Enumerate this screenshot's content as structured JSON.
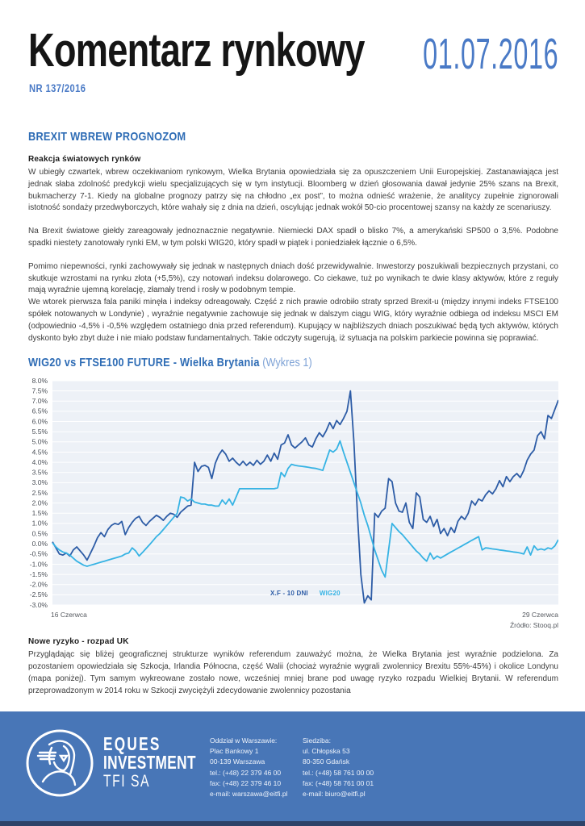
{
  "header": {
    "title": "Komentarz rynkowy",
    "issue": "NR 137/2016",
    "date": "01.07.2016"
  },
  "article": {
    "section_heading": "BREXIT WBREW PROGNOZOM",
    "sub1_heading": "Reakcja światowych rynków",
    "p1": "W ubiegły czwartek, wbrew oczekiwaniom rynkowym, Wielka Brytania opowiedziała się za opuszczeniem Unii Europejskiej. Zastanawiająca jest jednak słaba zdolność predykcji wielu specjalizujących się w tym instytucji. Bloomberg w dzień głosowania dawał jedynie 25% szans na Brexit, bukmacherzy 7-1. Kiedy na globalne prognozy patrzy się na chłodno „ex post”, to można odnieść wrażenie, że analitycy zupełnie zignorowali istotność sondaży przedwyborczych, które wahały się z dnia na dzień, oscylując jednak wokół 50-cio procentowej szansy na każdy ze scenariuszy.",
    "p2": "Na Brexit światowe giełdy zareagowały jednoznacznie negatywnie. Niemiecki DAX spadł o blisko 7%, a amerykański SP500 o 3,5%. Podobne spadki niestety zanotowały rynki EM, w tym polski WIG20, który spadł w piątek i poniedziałek łącznie o 6,5%.",
    "p3": "Pomimo niepewności, rynki zachowywały się jednak w następnych dniach dość przewidywalnie. Inwestorzy poszukiwali bezpiecznych przystani, co skutkuje wzrostami na rynku złota (+5,5%), czy notowań indeksu dolarowego. Co ciekawe, tuż po wynikach te dwie klasy aktywów, które z reguły mają wyraźnie ujemną korelację, złamały trend i rosły w podobnym tempie.",
    "p4": "We wtorek pierwsza fala paniki minęła i indeksy odreagowały. Część z nich prawie odrobiło straty  sprzed Brexit-u (między innymi indeks FTSE100 spółek notowanych w Londynie) , wyraźnie negatywnie zachowuje się jednak w dalszym ciągu WIG, który wyraźnie odbiega od indeksu MSCI EM (odpowiednio -4,5% i -0,5% względem ostatniego dnia przed referendum). Kupujący w najbliższych dniach poszukiwać będą tych aktywów, których dyskonto było zbyt duże i nie miało podstaw fundamentalnych. Takie odczyty sugerują, iż sytuacja na polskim parkiecie powinna się poprawiać.",
    "sub2_heading": "Nowe ryzyko - rozpad UK",
    "p5": "Przyglądając się bliżej geograficznej strukturze wyników referendum zauważyć można, że Wielka Brytania jest wyraźnie podzielona. Za pozostaniem opowiedziała się Szkocja, Irlandia Północna, część Walii (chociaż wyraźnie wygrali zwolennicy Brexitu 55%-45%) i okolice Londynu (mapa poniżej). Tym samym wykreowane zostało nowe, wcześniej mniej brane pod uwagę ryzyko rozpadu Wielkiej Brytanii. W referendum przeprowadzonym w 2014 roku w Szkocji zwyciężyli zdecydowanie zwolennicy pozostania"
  },
  "chart": {
    "title_main": "WIG20 vs FTSE100 FUTURE - Wielka Brytania",
    "title_note": " (Wykres 1)",
    "x_start_label": "16 Czerwca",
    "x_end_label": "29 Czerwca",
    "source": "Źródło: Stooq.pl",
    "legend": [
      {
        "label": "X.F - 10 DNI",
        "color": "#2d5ca6"
      },
      {
        "label": "WIG20",
        "color": "#36b3e4"
      }
    ]
  },
  "chart_data": {
    "type": "line",
    "title": "WIG20 vs FTSE100 FUTURE - Wielka Brytania (Wykres 1)",
    "xlabel": "",
    "ylabel": "",
    "x_range": [
      "16 Czerwca",
      "29 Czerwca"
    ],
    "ylim": [
      -3.0,
      8.0
    ],
    "ytick_step": 0.5,
    "ytick_labels": [
      "8.0%",
      "7.5%",
      "7.0%",
      "6.5%",
      "6.0%",
      "5.5%",
      "5.0%",
      "4.5%",
      "4.0%",
      "3.5%",
      "3.0%",
      "2.5%",
      "2.0%",
      "1.5%",
      "1.0%",
      "0.5%",
      "0.0%",
      "-0.5%",
      "-1.0%",
      "-1.5%",
      "-2.0%",
      "-2.5%",
      "-3.0%"
    ],
    "grid": true,
    "legend_position": "bottom-center",
    "source": "Źródło: Stooq.pl",
    "series": [
      {
        "name": "X.F - 10 DNI",
        "color": "#2d5ca6",
        "values": [
          0.1,
          -0.2,
          -0.5,
          -0.55,
          -0.45,
          -0.6,
          -0.3,
          -0.15,
          -0.35,
          -0.55,
          -0.8,
          -0.45,
          -0.1,
          0.3,
          0.55,
          0.35,
          0.7,
          0.9,
          1.0,
          0.95,
          1.1,
          0.45,
          0.8,
          1.05,
          1.25,
          1.35,
          1.05,
          0.9,
          1.1,
          1.25,
          1.4,
          1.3,
          1.15,
          1.35,
          1.5,
          1.45,
          1.3,
          1.55,
          1.7,
          1.85,
          1.9,
          4.0,
          3.55,
          3.8,
          3.85,
          3.75,
          3.2,
          3.95,
          4.35,
          4.6,
          4.4,
          4.05,
          4.2,
          4.0,
          3.85,
          4.05,
          3.85,
          4.0,
          3.85,
          4.1,
          3.9,
          4.05,
          4.35,
          4.05,
          4.45,
          4.15,
          4.85,
          4.95,
          5.35,
          4.85,
          4.7,
          4.85,
          5.0,
          5.2,
          4.85,
          4.75,
          5.15,
          5.45,
          5.25,
          5.55,
          5.95,
          5.65,
          6.05,
          5.85,
          6.15,
          6.5,
          7.5,
          5.0,
          1.5,
          -1.5,
          -2.9,
          -2.55,
          -2.75,
          1.5,
          1.3,
          1.6,
          1.75,
          3.2,
          3.05,
          2.0,
          1.6,
          1.55,
          2.0,
          1.05,
          0.75,
          2.5,
          2.3,
          1.2,
          1.05,
          1.35,
          0.85,
          1.2,
          0.5,
          0.75,
          0.4,
          0.8,
          0.55,
          1.1,
          1.35,
          1.2,
          1.5,
          2.1,
          1.9,
          2.2,
          2.1,
          2.4,
          2.6,
          2.45,
          2.7,
          3.1,
          2.8,
          3.3,
          3.05,
          3.3,
          3.45,
          3.25,
          3.6,
          4.1,
          4.4,
          4.6,
          5.3,
          5.5,
          5.15,
          6.3,
          6.15,
          6.6,
          7.05
        ]
      },
      {
        "name": "WIG20",
        "color": "#36b3e4",
        "values": [
          0.05,
          -0.15,
          -0.3,
          -0.4,
          -0.45,
          -0.55,
          -0.7,
          -0.85,
          -0.95,
          -1.05,
          -1.1,
          -1.05,
          -1.0,
          -0.95,
          -0.9,
          -0.85,
          -0.8,
          -0.75,
          -0.7,
          -0.65,
          -0.6,
          -0.5,
          -0.45,
          -0.2,
          -0.35,
          -0.6,
          -0.42,
          -0.23,
          -0.05,
          0.15,
          0.35,
          0.5,
          0.7,
          0.9,
          1.1,
          1.3,
          1.5,
          2.3,
          2.25,
          2.1,
          2.2,
          2.05,
          2.0,
          1.95,
          1.95,
          1.9,
          1.9,
          1.85,
          1.85,
          2.15,
          1.95,
          2.2,
          1.9,
          2.3,
          2.7,
          2.7,
          2.7,
          2.7,
          2.7,
          2.7,
          2.7,
          2.7,
          2.7,
          2.7,
          2.7,
          2.75,
          3.5,
          3.3,
          3.7,
          3.9,
          3.85,
          3.82,
          3.8,
          3.78,
          3.75,
          3.72,
          3.7,
          3.65,
          3.6,
          4.1,
          4.6,
          4.5,
          4.65,
          5.05,
          4.5,
          4.0,
          3.5,
          3.0,
          2.5,
          2.0,
          1.4,
          0.9,
          0.3,
          -0.3,
          -0.8,
          -1.3,
          -1.63,
          -0.3,
          1.0,
          0.8,
          0.6,
          0.45,
          0.25,
          0.05,
          -0.15,
          -0.35,
          -0.5,
          -0.7,
          -0.85,
          -0.45,
          -0.75,
          -0.6,
          -0.7,
          -0.6,
          -0.5,
          -0.4,
          -0.31,
          -0.21,
          -0.12,
          -0.02,
          0.07,
          0.17,
          0.26,
          0.35,
          -0.3,
          -0.2,
          -0.22,
          -0.25,
          -0.27,
          -0.3,
          -0.32,
          -0.35,
          -0.37,
          -0.4,
          -0.42,
          -0.45,
          -0.5,
          -0.15,
          -0.55,
          -0.1,
          -0.3,
          -0.25,
          -0.3,
          -0.2,
          -0.25,
          -0.1,
          0.2
        ]
      }
    ]
  },
  "footer": {
    "brand": {
      "line1": "EQUES",
      "line2": "INVESTMENT",
      "line3": "TFI SA"
    },
    "office": {
      "heading": "Oddział w Warszawie:",
      "lines": [
        "Plac Bankowy 1",
        "00-139 Warszawa",
        "tel.: (+48) 22 379 46 00",
        "fax: (+48) 22 379 46 10",
        "e-mail: warszawa@eitfi.pl"
      ]
    },
    "hq": {
      "heading": "Siedziba:",
      "lines": [
        "ul. Chłopska 53",
        "80-350 Gdańsk",
        "tel.: (+48) 58 761 00 00",
        "fax: (+48) 58 761 00 01",
        "e-mail: biuro@eitfi.pl"
      ]
    }
  },
  "colors": {
    "accent_heading_blue": "#2e6cb5",
    "light_blue": "#4a7ac6",
    "navy_line": "#2d5ca6",
    "cyan_line": "#36b3e4",
    "chart_bg": "#edf1f7",
    "footer_bg": "#4876b7",
    "footer_strip": "#2e4268"
  }
}
